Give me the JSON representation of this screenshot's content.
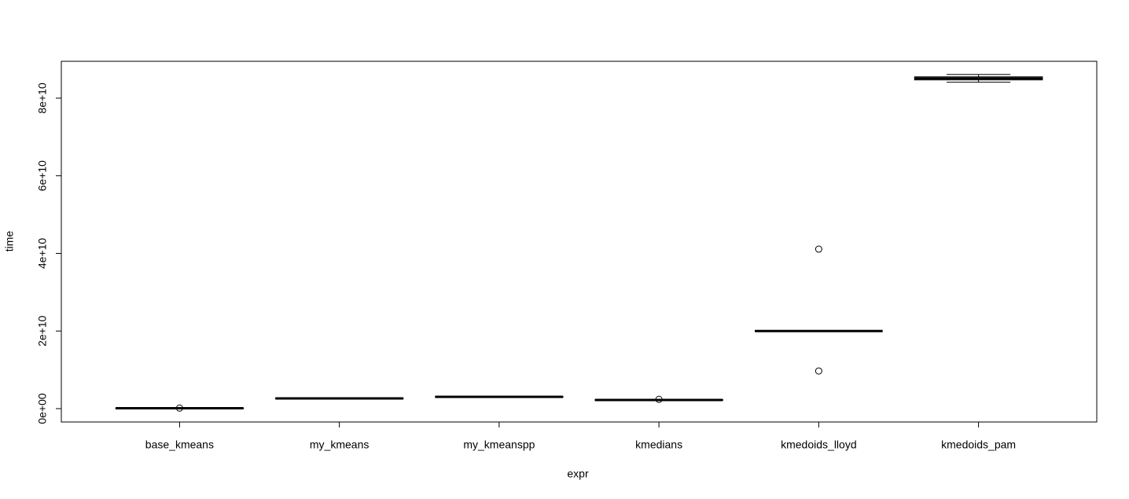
{
  "chart_data": {
    "type": "boxplot",
    "x_label": "expr",
    "y_label": "time",
    "categories": [
      "base_kmeans",
      "my_kmeans",
      "my_kmeanspp",
      "kmedians",
      "kmedoids_lloyd",
      "kmedoids_pam"
    ],
    "boxes": [
      {
        "min": 50000000,
        "q1": 80000000,
        "median": 100000000,
        "q3": 120000000,
        "max": 150000000,
        "outliers": [
          150000000
        ]
      },
      {
        "min": 2550000000,
        "q1": 2600000000,
        "median": 2630000000,
        "q3": 2660000000,
        "max": 2700000000,
        "outliers": []
      },
      {
        "min": 2950000000,
        "q1": 3000000000,
        "median": 3040000000,
        "q3": 3080000000,
        "max": 3120000000,
        "outliers": []
      },
      {
        "min": 2150000000,
        "q1": 2200000000,
        "median": 2230000000,
        "q3": 2260000000,
        "max": 2300000000,
        "outliers": [
          2400000000
        ]
      },
      {
        "min": 20000000000,
        "q1": 20000000000,
        "median": 20000000000,
        "q3": 20000000000,
        "max": 20000000000,
        "outliers": [
          41100000000,
          9700000000
        ]
      },
      {
        "min": 84100000000,
        "q1": 84700000000,
        "median": 85100000000,
        "q3": 85500000000,
        "max": 86100000000,
        "outliers": []
      }
    ],
    "ylim": [
      -3440000000,
      89500000000
    ],
    "yticks": [
      {
        "value": 0,
        "label": "0e+00"
      },
      {
        "value": 20000000000,
        "label": "2e+10"
      },
      {
        "value": 40000000000,
        "label": "4e+10"
      },
      {
        "value": 60000000000,
        "label": "6e+10"
      },
      {
        "value": 80000000000,
        "label": "8e+10"
      }
    ]
  }
}
